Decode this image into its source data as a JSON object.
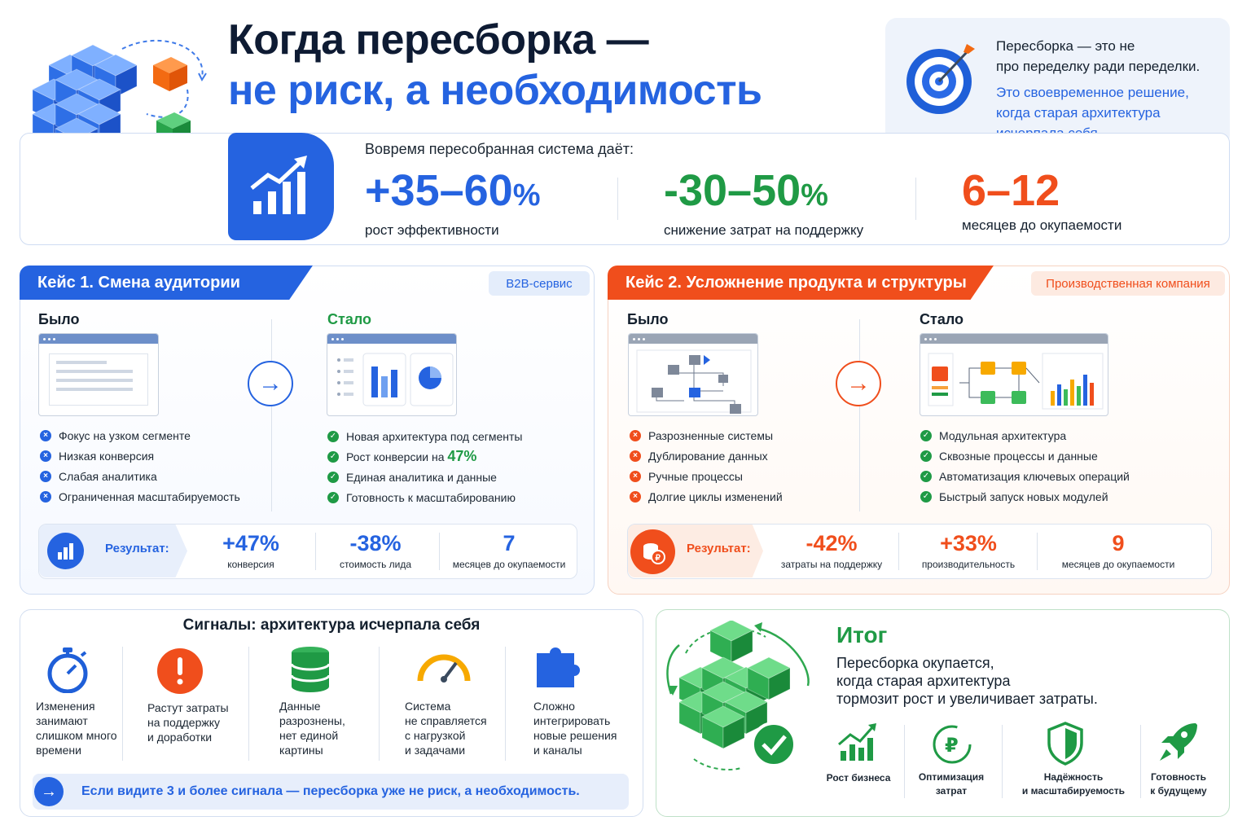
{
  "header": {
    "title_line1": "Когда пересборка —",
    "title_line2": "не риск, а необходимость"
  },
  "quote": {
    "line1": "Пересборка — это не",
    "line2": "про переделку ради переделки.",
    "line3": "Это своевременное решение,",
    "line4": "когда старая архитектура",
    "line5": "исчерпала себя."
  },
  "stats": {
    "intro": "Вовремя пересобранная система даёт:",
    "items": [
      {
        "value": "+35–60",
        "unit": "%",
        "label": "рост эффективности",
        "color": "#2563e0"
      },
      {
        "value": "-30–50",
        "unit": "%",
        "label": "снижение затрат на поддержку",
        "color": "#1f9a45"
      },
      {
        "value": "6–12",
        "unit": "",
        "label": "месяцев до окупаемости",
        "color": "#f04e1c"
      }
    ]
  },
  "case1": {
    "title": "Кейс 1. Смена аудитории",
    "tag": "B2B-сервис",
    "before": "Было",
    "after": "Стало",
    "before_items": [
      "Фокус на узком сегменте",
      "Низкая конверсия",
      "Слабая аналитика",
      "Ограниченная масштабируемость"
    ],
    "after_items": [
      "Новая архитектура под сегменты",
      "Рост конверсии на ",
      "Единая аналитика и данные",
      "Готовность к масштабированию"
    ],
    "after_highlight": "47%",
    "result_label": "Результат:",
    "results": [
      {
        "value": "+47%",
        "label": "конверсия"
      },
      {
        "value": "-38%",
        "label": "стоимость лида"
      },
      {
        "value": "7",
        "label": "месяцев до окупаемости"
      }
    ]
  },
  "case2": {
    "title": "Кейс 2. Усложнение продукта и структуры",
    "tag": "Производственная компания",
    "before": "Было",
    "after": "Стало",
    "before_items": [
      "Разрозненные системы",
      "Дублирование данных",
      "Ручные процессы",
      "Долгие циклы изменений"
    ],
    "after_items": [
      "Модульная архитектура",
      "Сквозные процессы и данные",
      "Автоматизация ключевых операций",
      "Быстрый запуск новых модулей"
    ],
    "result_label": "Результат:",
    "results": [
      {
        "value": "-42%",
        "label": "затраты на поддержку"
      },
      {
        "value": "+33%",
        "label": "производительность"
      },
      {
        "value": "9",
        "label": "месяцев до окупаемости"
      }
    ]
  },
  "signals": {
    "title": "Сигналы: архитектура исчерпала себя",
    "items": [
      {
        "icon": "stopwatch-icon",
        "lines": [
          "Изменения",
          "занимают",
          "слишком много",
          "времени"
        ]
      },
      {
        "icon": "warning-icon",
        "lines": [
          "Растут затраты",
          "на поддержку",
          "и доработки"
        ]
      },
      {
        "icon": "database-icon",
        "lines": [
          "Данные",
          "разрознены,",
          "нет единой",
          "картины"
        ]
      },
      {
        "icon": "gauge-icon",
        "lines": [
          "Система",
          "не справляется",
          "с нагрузкой",
          "и задачами"
        ]
      },
      {
        "icon": "puzzle-icon",
        "lines": [
          "Сложно",
          "интегрировать",
          "новые решения",
          "и каналы"
        ]
      }
    ],
    "callout": "Если видите 3 и более сигнала — пересборка уже не риск, а необходимость."
  },
  "summary": {
    "title": "Итог",
    "line1": "Пересборка окупается,",
    "line2": "когда старая архитектура",
    "line3": "тормозит рост и увеличивает затраты.",
    "benefits": [
      {
        "icon": "growth-chart-icon",
        "lines": [
          "Рост бизнеса"
        ]
      },
      {
        "icon": "ruble-cycle-icon",
        "lines": [
          "Оптимизация",
          "затрат"
        ]
      },
      {
        "icon": "shield-icon",
        "lines": [
          "Надёжность",
          "и масштабируемость"
        ]
      },
      {
        "icon": "rocket-icon",
        "lines": [
          "Готовность",
          "к будущему"
        ]
      }
    ]
  },
  "colors": {
    "blue": "#2563e0",
    "green": "#1f9a45",
    "orange": "#f04e1c"
  }
}
